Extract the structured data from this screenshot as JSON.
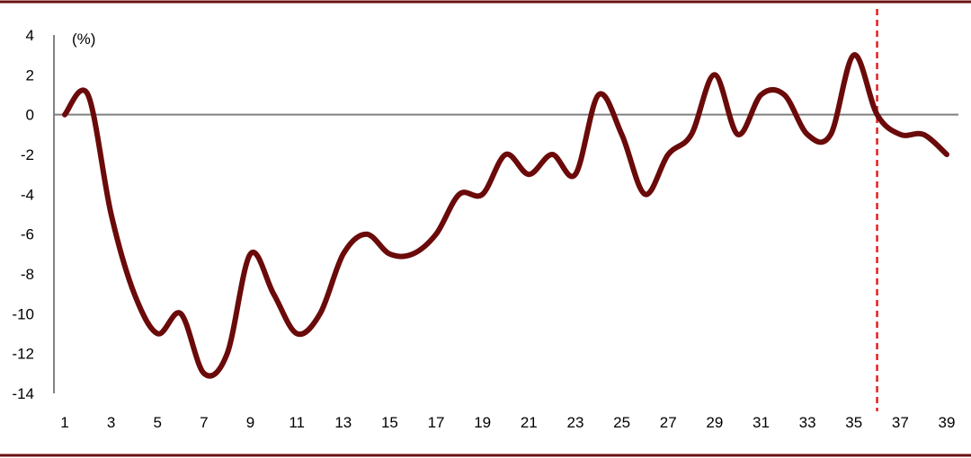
{
  "chart_data": {
    "type": "line",
    "title": "",
    "xlabel": "",
    "ylabel": "",
    "y_unit_label": "(%)",
    "x": [
      1,
      2,
      3,
      4,
      5,
      6,
      7,
      8,
      9,
      10,
      11,
      12,
      13,
      14,
      15,
      16,
      17,
      18,
      19,
      20,
      21,
      22,
      23,
      24,
      25,
      26,
      27,
      28,
      29,
      30,
      31,
      32,
      33,
      34,
      35,
      36,
      37,
      38,
      39
    ],
    "x_tick_labels": [
      "1",
      "3",
      "5",
      "7",
      "9",
      "11",
      "13",
      "15",
      "17",
      "19",
      "21",
      "23",
      "25",
      "27",
      "29",
      "31",
      "33",
      "35",
      "37",
      "39"
    ],
    "x_tick_values": [
      1,
      3,
      5,
      7,
      9,
      11,
      13,
      15,
      17,
      19,
      21,
      23,
      25,
      27,
      29,
      31,
      33,
      35,
      37,
      39
    ],
    "y_tick_values": [
      4,
      2,
      0,
      -2,
      -4,
      -6,
      -8,
      -10,
      -12,
      -14
    ],
    "y_tick_labels": [
      "4",
      "2",
      "0",
      "-2",
      "-4",
      "-6",
      "-8",
      "-10",
      "-12",
      "-14"
    ],
    "ylim": [
      -14,
      4
    ],
    "xlim": [
      1,
      39
    ],
    "grid": false,
    "zero_line": true,
    "series": [
      {
        "values": [
          0,
          1,
          -5,
          -9,
          -11,
          -10,
          -13,
          -12,
          -7,
          -9,
          -11,
          -10,
          -7,
          -6,
          -7,
          -7,
          -6,
          -4,
          -4,
          -2,
          -3,
          -2,
          -3,
          1,
          -1,
          -4,
          -2,
          -1,
          2,
          -1,
          1,
          1,
          -1,
          -1,
          3,
          0,
          -1,
          -1,
          -2
        ]
      }
    ],
    "reference_line": {
      "x": 36,
      "style": "dashed"
    },
    "colors": {
      "series": "#6b0a0a",
      "reference": "#e02020",
      "axis": "#808080",
      "frame": "#6b1010"
    }
  }
}
